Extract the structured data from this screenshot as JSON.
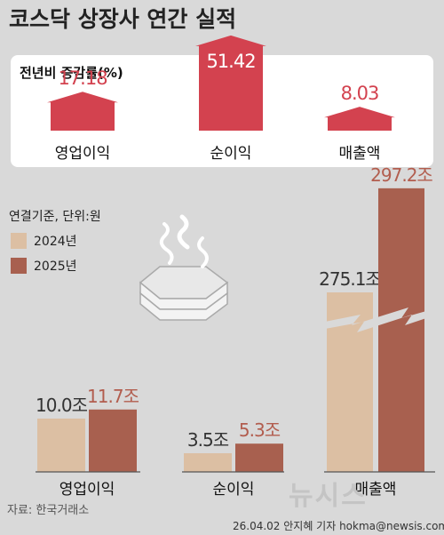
{
  "title": "코스닥 상장사 연간 실적",
  "panel": {
    "title": "전년비 증감률(%)"
  },
  "growth": [
    {
      "label": "영업이익",
      "value": 17.18,
      "text": "17.18"
    },
    {
      "label": "순이익",
      "value": 51.42,
      "text": "51.42"
    },
    {
      "label": "매출액",
      "value": 8.03,
      "text": "8.03"
    }
  ],
  "legend": {
    "title": "연결기준, 단위:원",
    "items": [
      {
        "label": "2024년",
        "color": "#dcbfa3"
      },
      {
        "label": "2025년",
        "color": "#a8604f"
      }
    ]
  },
  "chart_data": [
    {
      "type": "bar",
      "title": "전년비 증감률(%)",
      "categories": [
        "영업이익",
        "순이익",
        "매출액"
      ],
      "values": [
        17.18,
        51.42,
        8.03
      ]
    },
    {
      "type": "bar",
      "title": "",
      "ylabel": "연결기준, 단위:원",
      "categories": [
        "영업이익",
        "순이익",
        "매출액"
      ],
      "series": [
        {
          "name": "2024년",
          "values": [
            10.0,
            3.5,
            275.1
          ],
          "labels": [
            "10.0조",
            "3.5조",
            "275.1조"
          ],
          "color": "#dcbfa3"
        },
        {
          "name": "2025년",
          "values": [
            11.7,
            5.3,
            297.2
          ],
          "labels": [
            "11.7조",
            "5.3조",
            "297.2조"
          ],
          "color": "#a8604f"
        }
      ],
      "axis_break": "매출액"
    }
  ],
  "source": "자료: 한국거래소",
  "credit": "26.04.02 안지혜 기자 hokma@newsis.com",
  "watermark": "뉴시스",
  "icon": "melting-ice-icon",
  "colors": {
    "accent": "#d3424f",
    "bg": "#d9d9d9",
    "panel": "#ffffff"
  }
}
